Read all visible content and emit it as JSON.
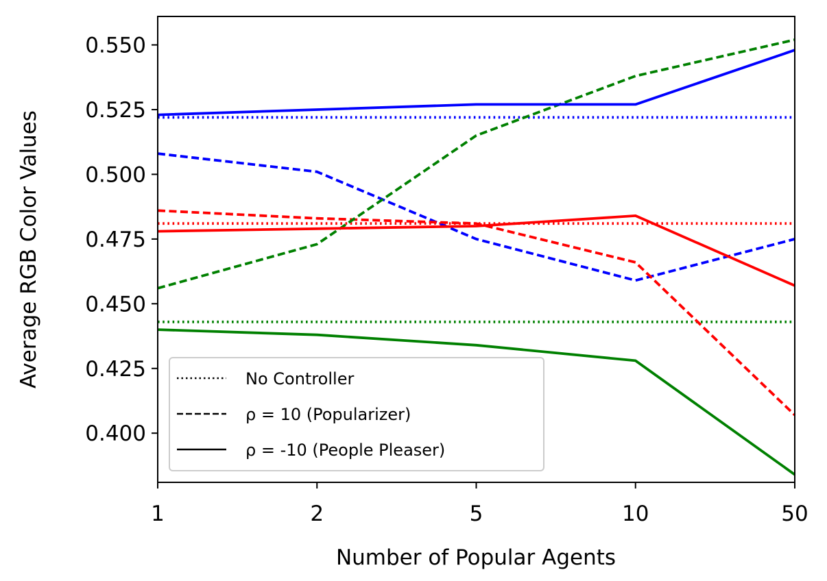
{
  "chart_data": {
    "type": "line",
    "xlabel": "Number of Popular Agents",
    "ylabel": "Average RGB Color Values",
    "x_scale": "categorical",
    "categories": [
      "1",
      "2",
      "5",
      "10",
      "50"
    ],
    "ylim": [
      0.381,
      0.561
    ],
    "yticks": [
      "0.400",
      "0.425",
      "0.450",
      "0.475",
      "0.500",
      "0.525",
      "0.550"
    ],
    "grid": false,
    "legend_position": "lower-left",
    "legend": [
      {
        "label": "No Controller",
        "style": "dotted"
      },
      {
        "label": "ρ = 10 (Popularizer)",
        "style": "dashed"
      },
      {
        "label": "ρ = -10 (People Pleaser)",
        "style": "solid"
      }
    ],
    "series": [
      {
        "color": "#0000ff",
        "style": "dotted",
        "values": [
          0.522,
          0.522,
          0.522,
          0.522,
          0.522
        ]
      },
      {
        "color": "#ff0000",
        "style": "dotted",
        "values": [
          0.481,
          0.481,
          0.481,
          0.481,
          0.481
        ]
      },
      {
        "color": "#008000",
        "style": "dotted",
        "values": [
          0.443,
          0.443,
          0.443,
          0.443,
          0.443
        ]
      },
      {
        "color": "#0000ff",
        "style": "dashed",
        "values": [
          0.508,
          0.501,
          0.475,
          0.459,
          0.475
        ]
      },
      {
        "color": "#ff0000",
        "style": "dashed",
        "values": [
          0.486,
          0.483,
          0.481,
          0.466,
          0.407
        ]
      },
      {
        "color": "#008000",
        "style": "dashed",
        "values": [
          0.456,
          0.473,
          0.515,
          0.538,
          0.552
        ]
      },
      {
        "color": "#0000ff",
        "style": "solid",
        "values": [
          0.523,
          0.525,
          0.527,
          0.527,
          0.548
        ]
      },
      {
        "color": "#ff0000",
        "style": "solid",
        "values": [
          0.478,
          0.479,
          0.48,
          0.484,
          0.457
        ]
      },
      {
        "color": "#008000",
        "style": "solid",
        "values": [
          0.44,
          0.438,
          0.434,
          0.428,
          0.384
        ]
      }
    ]
  }
}
